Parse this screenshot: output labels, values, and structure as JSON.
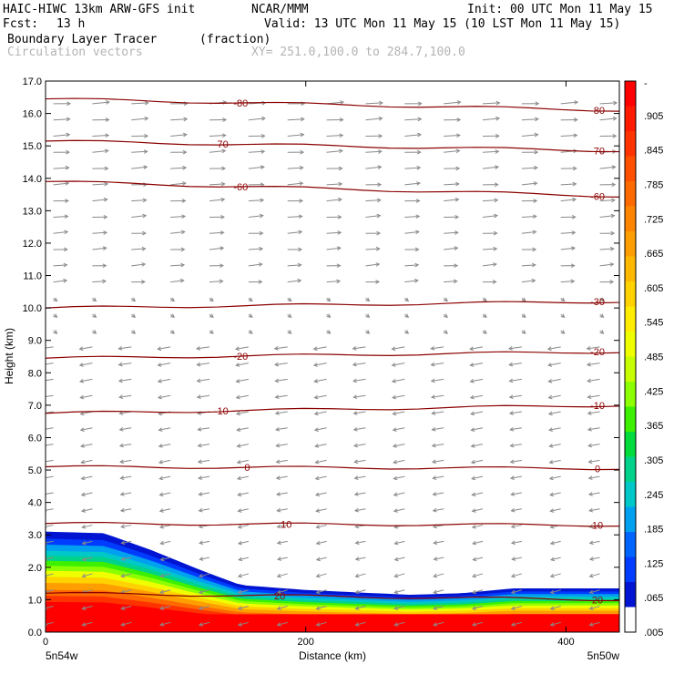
{
  "header": {
    "model": "HAIC-HIWC 13km ARW-GFS init",
    "org": "NCAR/MMM",
    "init": "Init: 00 UTC Mon 11 May 15",
    "fcst_label": "Fcst:",
    "fcst_value": "13 h",
    "valid": "Valid: 13 UTC Mon 11 May 15 (10 LST Mon 11 May 15)",
    "field": "Boundary Layer Tracer",
    "field_units": "(fraction)",
    "vector_label": "Circulation vectors",
    "xy_range": "XY= 251.0,100.0 to 284.7,100.0"
  },
  "chart_data": {
    "type": "heatmap",
    "title": "Boundary Layer Tracer (fraction)",
    "ylabel": "Height (km)",
    "xlabel": "Distance (km)",
    "ylim": [
      0,
      17
    ],
    "xlim": [
      0,
      441
    ],
    "y_ticks": [
      "0.0",
      "1.0",
      "2.0",
      "3.0",
      "4.0",
      "5.0",
      "6.0",
      "7.0",
      "8.0",
      "9.0",
      "10.0",
      "11.0",
      "12.0",
      "13.0",
      "14.0",
      "15.0",
      "16.0",
      "17.0"
    ],
    "x_ticks": [
      "0",
      "200",
      "400"
    ],
    "x_tick_values": [
      0,
      200,
      400
    ],
    "x_endpoints": {
      "left": "5n54w",
      "right": "5n50w"
    },
    "tracer_top_km": [
      {
        "x": 0,
        "y": 3.1
      },
      {
        "x": 45,
        "y": 3.05
      },
      {
        "x": 80,
        "y": 2.55
      },
      {
        "x": 120,
        "y": 1.9
      },
      {
        "x": 150,
        "y": 1.45
      },
      {
        "x": 200,
        "y": 1.3
      },
      {
        "x": 280,
        "y": 1.15
      },
      {
        "x": 320,
        "y": 1.2
      },
      {
        "x": 360,
        "y": 1.35
      },
      {
        "x": 441,
        "y": 1.35
      }
    ],
    "colorbar": {
      "labels": [
        "-",
        ".905",
        ".845",
        ".785",
        ".725",
        ".665",
        ".605",
        ".545",
        ".485",
        ".425",
        ".365",
        ".305",
        ".245",
        ".185",
        ".125",
        ".065",
        ".005"
      ],
      "colors": [
        "#ff0000",
        "#ff1a00",
        "#ff3300",
        "#ff5000",
        "#ff6a00",
        "#ff8400",
        "#ff9e00",
        "#ffb800",
        "#ffd200",
        "#ffec00",
        "#f0ff00",
        "#c8ff00",
        "#8cff00",
        "#3cf000",
        "#00dc3c",
        "#00d28c",
        "#00c8c8",
        "#00a0f0",
        "#0064ff",
        "#003cff",
        "#0014d2",
        "#ffffff"
      ]
    },
    "isotherms": [
      {
        "label": "-80",
        "left_y": 16.45,
        "right_y": 16.1,
        "label_x": [
          150,
          470
        ]
      },
      {
        "label": "-70",
        "left_y": 15.15,
        "right_y": 14.85,
        "label_x": [
          135,
          470
        ]
      },
      {
        "label": "-60",
        "left_y": 13.9,
        "right_y": 13.45,
        "label_x": [
          150,
          470
        ]
      },
      {
        "label": "-30",
        "left_y": 10.0,
        "right_y": 10.2,
        "label_x": [
          470
        ]
      },
      {
        "label": "-20",
        "left_y": 8.45,
        "right_y": 8.65,
        "label_x": [
          150,
          470
        ]
      },
      {
        "label": "-10",
        "left_y": 6.75,
        "right_y": 7.0,
        "label_x": [
          135,
          470
        ]
      },
      {
        "label": "0",
        "left_y": 5.1,
        "right_y": 5.05,
        "label_x": [
          155,
          470
        ]
      },
      {
        "label": "10",
        "left_y": 3.35,
        "right_y": 3.3,
        "label_x": [
          185,
          470
        ]
      },
      {
        "label": "20",
        "left_y": 1.2,
        "right_y": 1.0,
        "label_x": [
          180,
          470
        ]
      }
    ]
  }
}
